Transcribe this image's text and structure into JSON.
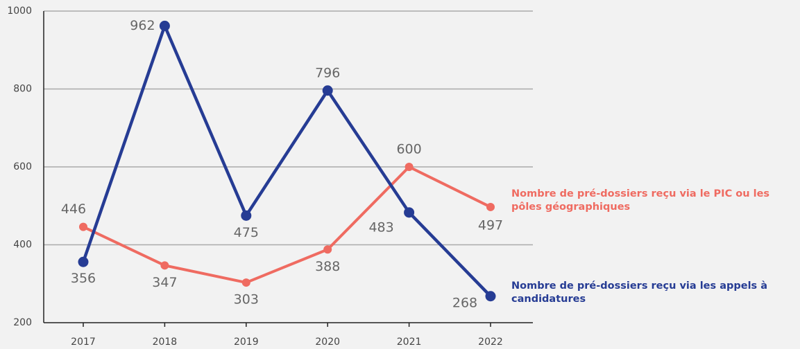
{
  "chart_data": {
    "type": "line",
    "categories": [
      "2017",
      "2018",
      "2019",
      "2020",
      "2021",
      "2022"
    ],
    "series": [
      {
        "name": "Nombre de pré-dossiers reçu via le PIC ou les pôles géographiques",
        "color": "#ef6b61",
        "values": [
          446,
          347,
          303,
          388,
          600,
          497
        ]
      },
      {
        "name": "Nombre de pré-dossiers reçu via les appels à candidatures",
        "color": "#263c94",
        "values": [
          356,
          962,
          475,
          796,
          483,
          268
        ]
      }
    ],
    "ylim": [
      200,
      1000
    ],
    "yticks": [
      200,
      400,
      600,
      800,
      1000
    ],
    "grid": true
  }
}
